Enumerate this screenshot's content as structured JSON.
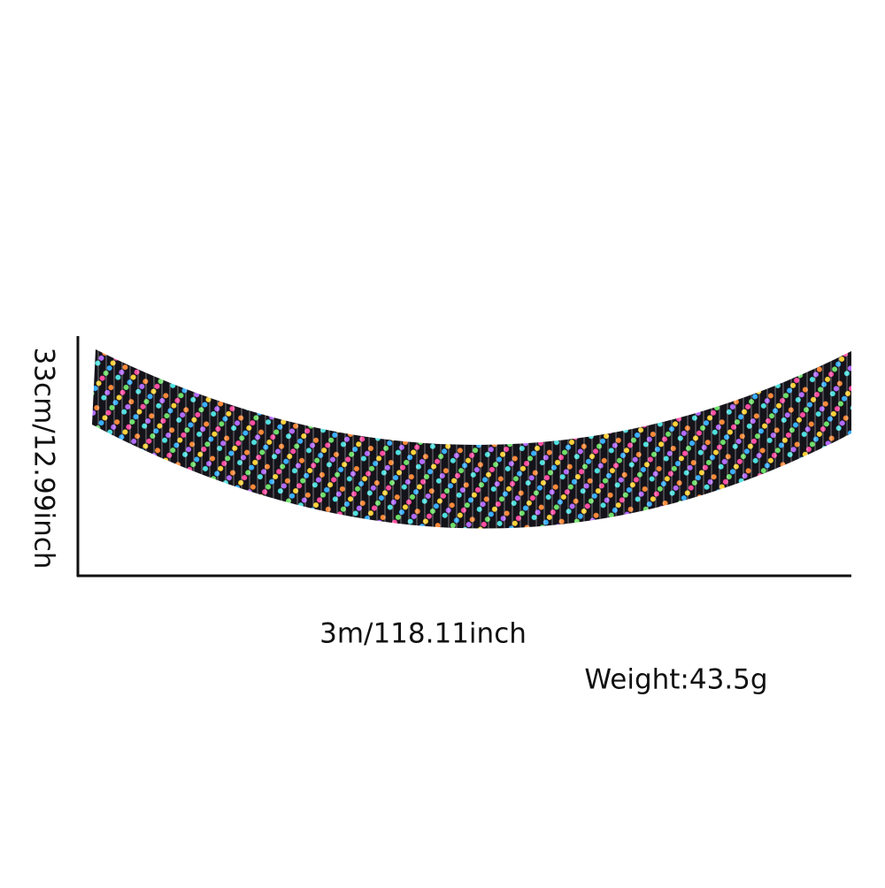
{
  "dimensions": {
    "height": "33cm/12.99inch",
    "width": "3m/118.11inch",
    "weight": "Weight:43.5g"
  }
}
